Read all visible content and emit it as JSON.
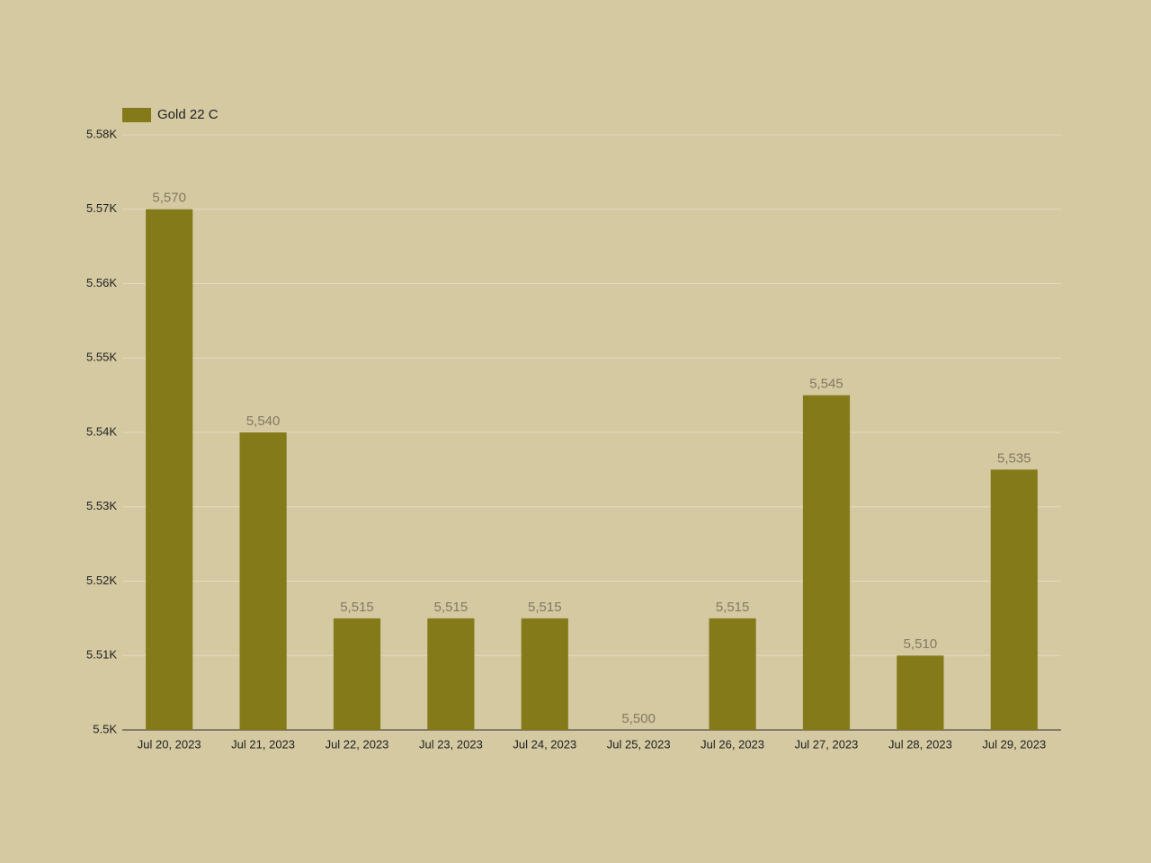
{
  "chart_data": {
    "type": "bar",
    "legend": "top-left",
    "categories": [
      "Jul 20, 2023",
      "Jul 21, 2023",
      "Jul 22, 2023",
      "Jul 23, 2023",
      "Jul 24, 2023",
      "Jul 25, 2023",
      "Jul 26, 2023",
      "Jul 27, 2023",
      "Jul 28, 2023",
      "Jul 29, 2023"
    ],
    "series": [
      {
        "name": "Gold 22 C",
        "color": "#857a1a",
        "values": [
          5570,
          5540,
          5515,
          5515,
          5515,
          5500,
          5515,
          5545,
          5510,
          5535
        ],
        "value_labels": [
          "5,570",
          "5,540",
          "5,515",
          "5,515",
          "5,515",
          "5,500",
          "5,515",
          "5,545",
          "5,510",
          "5,535"
        ]
      }
    ],
    "ylim": [
      5500,
      5580
    ],
    "yticks": [
      {
        "value": 5500,
        "label": "5.5K"
      },
      {
        "value": 5510,
        "label": "5.51K"
      },
      {
        "value": 5520,
        "label": "5.52K"
      },
      {
        "value": 5530,
        "label": "5.53K"
      },
      {
        "value": 5540,
        "label": "5.54K"
      },
      {
        "value": 5550,
        "label": "5.55K"
      },
      {
        "value": 5560,
        "label": "5.56K"
      },
      {
        "value": 5570,
        "label": "5.57K"
      },
      {
        "value": 5580,
        "label": "5.58K"
      }
    ],
    "grid": true
  }
}
